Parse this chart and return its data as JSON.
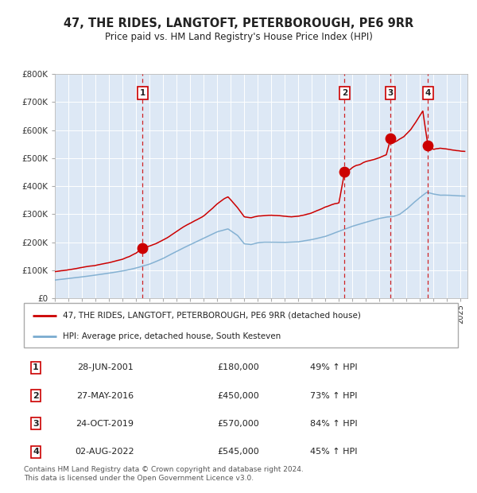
{
  "title": "47, THE RIDES, LANGTOFT, PETERBOROUGH, PE6 9RR",
  "subtitle": "Price paid vs. HM Land Registry's House Price Index (HPI)",
  "legend_line1": "47, THE RIDES, LANGTOFT, PETERBOROUGH, PE6 9RR (detached house)",
  "legend_line2": "HPI: Average price, detached house, South Kesteven",
  "footer": "Contains HM Land Registry data © Crown copyright and database right 2024.\nThis data is licensed under the Open Government Licence v3.0.",
  "background_color": "#ffffff",
  "plot_bg_color": "#dde8f5",
  "red_line_color": "#cc0000",
  "blue_line_color": "#7aabcf",
  "vline_color": "#cc0000",
  "transactions": [
    {
      "id": 1,
      "date_x": 2001.49,
      "price": 180000,
      "label": "28-JUN-2001",
      "price_str": "£180,000",
      "pct": "49% ↑ HPI"
    },
    {
      "id": 2,
      "date_x": 2016.41,
      "price": 450000,
      "label": "27-MAY-2016",
      "price_str": "£450,000",
      "pct": "73% ↑ HPI"
    },
    {
      "id": 3,
      "date_x": 2019.81,
      "price": 570000,
      "label": "24-OCT-2019",
      "price_str": "£570,000",
      "pct": "84% ↑ HPI"
    },
    {
      "id": 4,
      "date_x": 2022.58,
      "price": 545000,
      "label": "02-AUG-2022",
      "price_str": "£545,000",
      "pct": "45% ↑ HPI"
    }
  ],
  "ylim": [
    0,
    800000
  ],
  "xlim": [
    1995.0,
    2025.5
  ],
  "yticks": [
    0,
    100000,
    200000,
    300000,
    400000,
    500000,
    600000,
    700000,
    800000
  ],
  "ytick_labels": [
    "£0",
    "£100K",
    "£200K",
    "£300K",
    "£400K",
    "£500K",
    "£600K",
    "£700K",
    "£800K"
  ],
  "xticks": [
    1995,
    1996,
    1997,
    1998,
    1999,
    2000,
    2001,
    2002,
    2003,
    2004,
    2005,
    2006,
    2007,
    2008,
    2009,
    2010,
    2011,
    2012,
    2013,
    2014,
    2015,
    2016,
    2017,
    2018,
    2019,
    2020,
    2021,
    2022,
    2023,
    2024,
    2025
  ],
  "red_key_x": [
    1995.0,
    1996.0,
    1997.0,
    1998.0,
    1999.0,
    2000.0,
    2000.5,
    2001.0,
    2001.49,
    2002.0,
    2002.5,
    2003.0,
    2003.5,
    2004.0,
    2004.5,
    2005.0,
    2005.5,
    2006.0,
    2006.5,
    2007.0,
    2007.5,
    2007.8,
    2008.0,
    2008.5,
    2008.8,
    2009.0,
    2009.5,
    2010.0,
    2010.5,
    2011.0,
    2011.5,
    2012.0,
    2012.5,
    2013.0,
    2013.5,
    2014.0,
    2014.5,
    2015.0,
    2015.5,
    2016.0,
    2016.41,
    2016.8,
    2017.0,
    2017.3,
    2017.5,
    2017.8,
    2018.0,
    2018.5,
    2018.8,
    2019.0,
    2019.5,
    2019.81,
    2020.0,
    2020.3,
    2020.5,
    2020.8,
    2021.0,
    2021.3,
    2021.8,
    2022.0,
    2022.2,
    2022.58,
    2022.8,
    2023.0,
    2023.5,
    2024.0,
    2024.5,
    2025.3
  ],
  "red_key_y": [
    95000,
    102000,
    110000,
    118000,
    128000,
    140000,
    150000,
    162000,
    180000,
    188000,
    198000,
    210000,
    225000,
    242000,
    258000,
    272000,
    285000,
    298000,
    318000,
    340000,
    358000,
    365000,
    355000,
    328000,
    308000,
    295000,
    292000,
    298000,
    300000,
    302000,
    300000,
    298000,
    296000,
    298000,
    302000,
    308000,
    318000,
    328000,
    338000,
    345000,
    450000,
    462000,
    470000,
    478000,
    480000,
    488000,
    492000,
    498000,
    502000,
    505000,
    515000,
    570000,
    558000,
    565000,
    572000,
    580000,
    590000,
    605000,
    642000,
    658000,
    672000,
    545000,
    540000,
    535000,
    538000,
    535000,
    532000,
    528000
  ],
  "hpi_key_x": [
    1995.0,
    1996.0,
    1997.0,
    1998.0,
    1999.0,
    2000.0,
    2001.0,
    2002.0,
    2003.0,
    2004.0,
    2005.0,
    2006.0,
    2007.0,
    2007.8,
    2008.5,
    2009.0,
    2009.5,
    2010.0,
    2010.5,
    2011.0,
    2012.0,
    2013.0,
    2014.0,
    2015.0,
    2016.0,
    2017.0,
    2018.0,
    2019.0,
    2019.5,
    2020.0,
    2020.5,
    2021.0,
    2021.5,
    2022.0,
    2022.5,
    2023.0,
    2023.5,
    2024.0,
    2025.3
  ],
  "hpi_key_y": [
    65000,
    70000,
    76000,
    83000,
    90000,
    98000,
    108000,
    122000,
    142000,
    168000,
    192000,
    215000,
    238000,
    248000,
    225000,
    195000,
    192000,
    198000,
    200000,
    200000,
    200000,
    202000,
    210000,
    222000,
    240000,
    258000,
    272000,
    285000,
    290000,
    292000,
    300000,
    318000,
    340000,
    360000,
    378000,
    372000,
    368000,
    368000,
    365000
  ]
}
